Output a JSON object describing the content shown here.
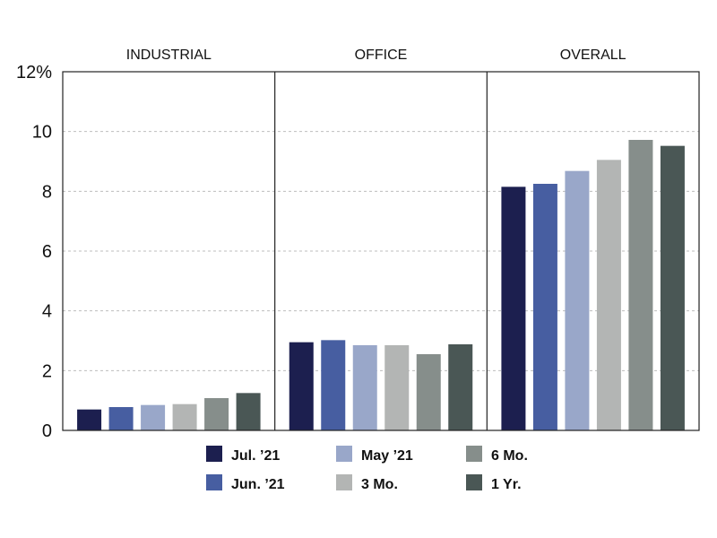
{
  "chart_data": {
    "type": "bar",
    "categories": [
      "INDUSTRIAL",
      "OFFICE",
      "OVERALL"
    ],
    "series": [
      {
        "name": "Jul. ’21",
        "color": "#1c1f4f",
        "values": [
          0.7,
          2.95,
          8.15
        ]
      },
      {
        "name": "Jun. ’21",
        "color": "#475ea1",
        "values": [
          0.78,
          3.02,
          8.25
        ]
      },
      {
        "name": "May ’21",
        "color": "#99a7c9",
        "values": [
          0.85,
          2.85,
          8.68
        ]
      },
      {
        "name": "3 Mo.",
        "color": "#b3b5b4",
        "values": [
          0.88,
          2.85,
          9.05
        ]
      },
      {
        "name": "6 Mo.",
        "color": "#868e8b",
        "values": [
          1.08,
          2.55,
          9.72
        ]
      },
      {
        "name": "1 Yr.",
        "color": "#4a5755",
        "values": [
          1.25,
          2.88,
          9.52
        ]
      }
    ],
    "ylim": [
      0,
      12
    ],
    "yticks": [
      {
        "value": 0,
        "label": "0"
      },
      {
        "value": 2,
        "label": "2"
      },
      {
        "value": 4,
        "label": "4"
      },
      {
        "value": 6,
        "label": "6"
      },
      {
        "value": 8,
        "label": "8"
      },
      {
        "value": 10,
        "label": "10"
      },
      {
        "value": 12,
        "label": "12%"
      }
    ],
    "grid": true,
    "legend_position": "bottom"
  }
}
